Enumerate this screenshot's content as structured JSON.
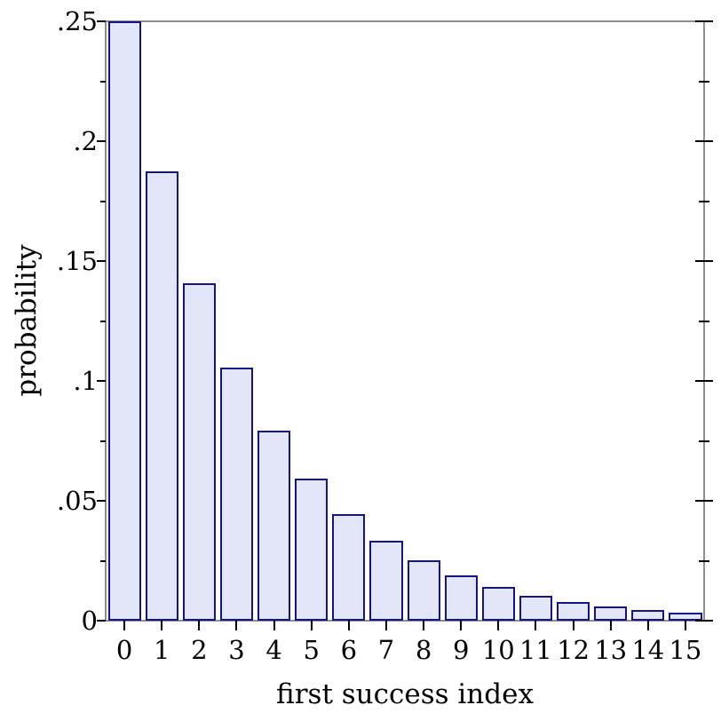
{
  "chart_data": {
    "type": "bar",
    "title": "",
    "xlabel": "first success index",
    "ylabel": "probability",
    "categories": [
      "0",
      "1",
      "2",
      "3",
      "4",
      "5",
      "6",
      "7",
      "8",
      "9",
      "10",
      "11",
      "12",
      "13",
      "14",
      "15"
    ],
    "values": [
      0.25,
      0.1875,
      0.140625,
      0.105469,
      0.079102,
      0.059326,
      0.044495,
      0.033371,
      0.025028,
      0.018771,
      0.014078,
      0.010559,
      0.007919,
      0.005939,
      0.004454,
      0.003341
    ],
    "ylim": [
      0,
      0.25
    ],
    "grid": false,
    "legend": "none",
    "y_axis": {
      "major_ticks": [
        {
          "value": 0,
          "label": "0"
        },
        {
          "value": 0.05,
          "label": ".05"
        },
        {
          "value": 0.1,
          "label": ".1"
        },
        {
          "value": 0.15,
          "label": ".15"
        },
        {
          "value": 0.2,
          "label": ".2"
        },
        {
          "value": 0.25,
          "label": ".25"
        }
      ],
      "minor_ticks": [
        0.025,
        0.075,
        0.125,
        0.175,
        0.225
      ]
    },
    "colors": {
      "bar_fill": "#e2e6f8",
      "bar_border": "#13138a",
      "frame": "#8f8f8f",
      "tick": "#000000",
      "text": "#000000",
      "background": "#ffffff"
    }
  }
}
